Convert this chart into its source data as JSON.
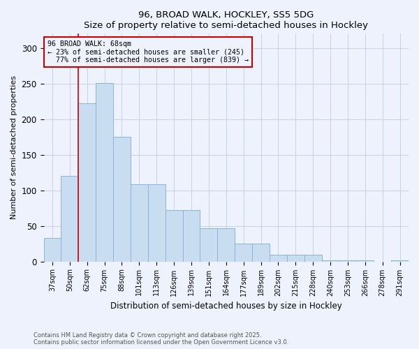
{
  "title1": "96, BROAD WALK, HOCKLEY, SS5 5DG",
  "title2": "Size of property relative to semi-detached houses in Hockley",
  "xlabel": "Distribution of semi-detached houses by size in Hockley",
  "ylabel": "Number of semi-detached properties",
  "bar_labels": [
    "37sqm",
    "50sqm",
    "62sqm",
    "75sqm",
    "88sqm",
    "101sqm",
    "113sqm",
    "126sqm",
    "139sqm",
    "151sqm",
    "164sqm",
    "177sqm",
    "189sqm",
    "202sqm",
    "215sqm",
    "228sqm",
    "240sqm",
    "253sqm",
    "266sqm",
    "278sqm",
    "291sqm"
  ],
  "bar_values": [
    33,
    120,
    222,
    251,
    175,
    108,
    108,
    72,
    72,
    47,
    47,
    25,
    25,
    9,
    9,
    9,
    2,
    2,
    2,
    0,
    2
  ],
  "bar_color": "#c9ddf0",
  "bar_edge_color": "#8ab4d8",
  "property_label": "96 BROAD WALK: 68sqm",
  "pct_smaller": 23,
  "pct_larger": 77,
  "n_smaller": 245,
  "n_larger": 839,
  "vline_x": 1.5,
  "vline_color": "#cc0000",
  "ylim": [
    0,
    320
  ],
  "yticks": [
    0,
    50,
    100,
    150,
    200,
    250,
    300
  ],
  "footnote1": "Contains HM Land Registry data © Crown copyright and database right 2025.",
  "footnote2": "Contains public sector information licensed under the Open Government Licence v3.0.",
  "bg_color": "#eef2fc",
  "grid_color": "#c8d0e8"
}
